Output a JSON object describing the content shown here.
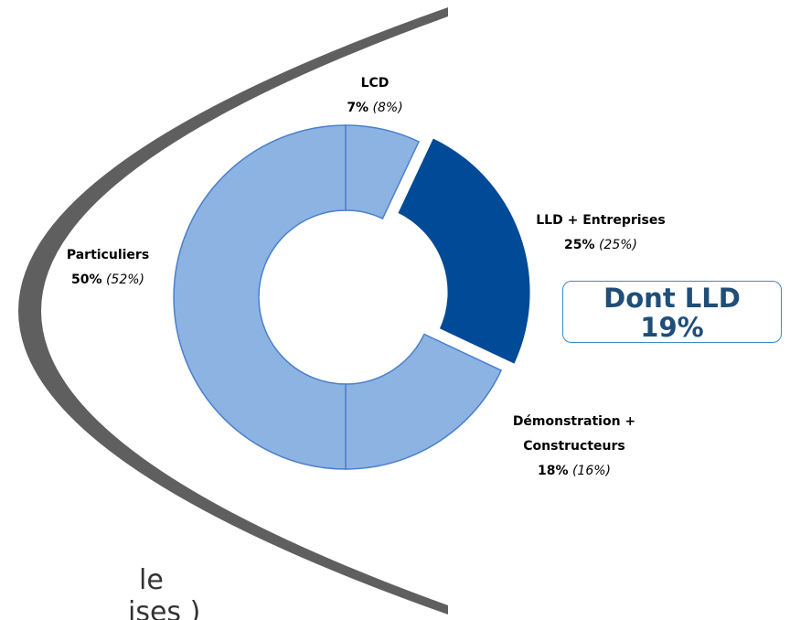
{
  "chart_data": {
    "type": "donut",
    "categories": [
      "LCD",
      "LLD + Entreprises",
      "Démonstration + Constructeurs",
      "Particuliers"
    ],
    "values": [
      7,
      25,
      18,
      50
    ],
    "value_labels": [
      "7%",
      "25%",
      "18%",
      "50%"
    ],
    "comparison_labels": [
      "(8%)",
      "(25%)",
      "(16%)",
      "(52%)"
    ],
    "colors": [
      "#8db3e2",
      "#004a97",
      "#8db3e2",
      "#8db3e2"
    ],
    "exploded": [
      false,
      true,
      false,
      false
    ],
    "callout": {
      "title": "Dont LLD",
      "value_label": "19%"
    }
  },
  "fragments": [
    "le",
    "ises )"
  ]
}
